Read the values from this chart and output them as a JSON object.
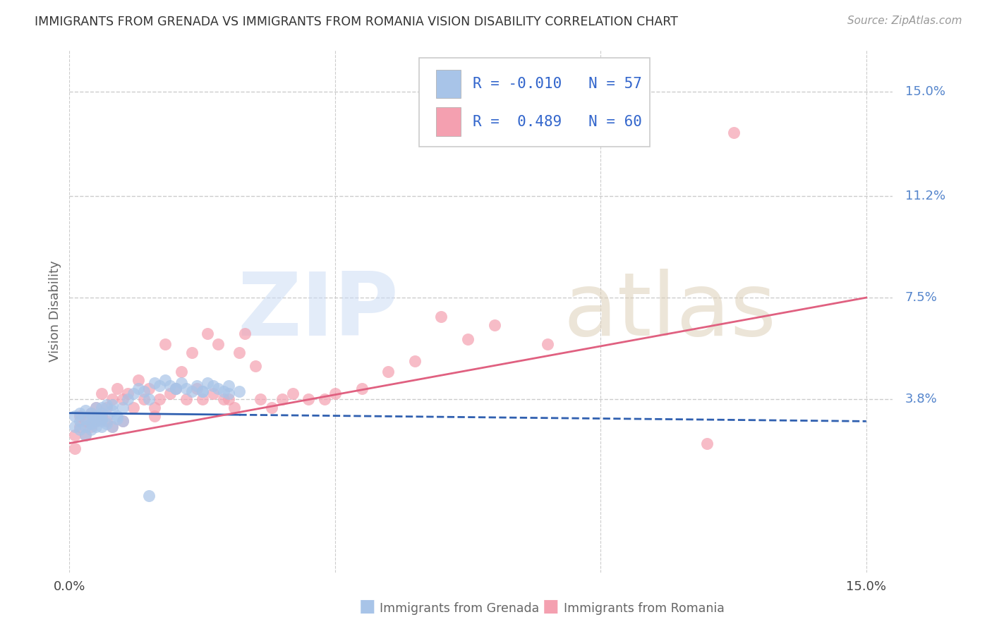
{
  "title": "IMMIGRANTS FROM GRENADA VS IMMIGRANTS FROM ROMANIA VISION DISABILITY CORRELATION CHART",
  "source": "Source: ZipAtlas.com",
  "ylabel": "Vision Disability",
  "xlim": [
    0.0,
    0.155
  ],
  "ylim": [
    -0.025,
    0.165
  ],
  "yticks": [
    0.038,
    0.075,
    0.112,
    0.15
  ],
  "ytick_labels": [
    "3.8%",
    "7.5%",
    "11.2%",
    "15.0%"
  ],
  "xtick_vals": [
    0.0,
    0.05,
    0.1,
    0.15
  ],
  "grenada_color": "#a8c4e8",
  "romania_color": "#f4a0b0",
  "grenada_line_color": "#3060b0",
  "romania_line_color": "#e06080",
  "grenada_R": -0.01,
  "grenada_N": 57,
  "romania_R": 0.489,
  "romania_N": 60,
  "background_color": "#ffffff",
  "grid_color": "#cccccc",
  "axis_label_color": "#5585cc",
  "title_color": "#333333",
  "legend_text_color": "#3366cc",
  "grenada_x": [
    0.001,
    0.001,
    0.002,
    0.002,
    0.002,
    0.003,
    0.003,
    0.003,
    0.003,
    0.004,
    0.004,
    0.004,
    0.004,
    0.005,
    0.005,
    0.005,
    0.005,
    0.006,
    0.006,
    0.006,
    0.006,
    0.006,
    0.007,
    0.007,
    0.007,
    0.008,
    0.008,
    0.008,
    0.009,
    0.009,
    0.01,
    0.01,
    0.011,
    0.012,
    0.013,
    0.014,
    0.015,
    0.016,
    0.017,
    0.018,
    0.019,
    0.02,
    0.021,
    0.022,
    0.023,
    0.024,
    0.025,
    0.026,
    0.027,
    0.028,
    0.029,
    0.03,
    0.032,
    0.015,
    0.02,
    0.025,
    0.03
  ],
  "grenada_y": [
    0.028,
    0.032,
    0.03,
    0.033,
    0.027,
    0.031,
    0.028,
    0.034,
    0.025,
    0.031,
    0.029,
    0.033,
    0.027,
    0.032,
    0.03,
    0.028,
    0.035,
    0.033,
    0.031,
    0.03,
    0.028,
    0.035,
    0.036,
    0.032,
    0.029,
    0.034,
    0.028,
    0.036,
    0.032,
    0.031,
    0.035,
    0.03,
    0.038,
    0.04,
    0.042,
    0.041,
    0.003,
    0.044,
    0.043,
    0.045,
    0.043,
    0.042,
    0.044,
    0.042,
    0.041,
    0.043,
    0.041,
    0.044,
    0.043,
    0.042,
    0.041,
    0.04,
    0.041,
    0.038,
    0.042,
    0.041,
    0.043
  ],
  "romania_x": [
    0.001,
    0.001,
    0.002,
    0.002,
    0.003,
    0.003,
    0.004,
    0.004,
    0.005,
    0.005,
    0.006,
    0.006,
    0.007,
    0.007,
    0.008,
    0.008,
    0.009,
    0.01,
    0.01,
    0.011,
    0.012,
    0.013,
    0.014,
    0.015,
    0.016,
    0.016,
    0.017,
    0.018,
    0.019,
    0.02,
    0.021,
    0.022,
    0.023,
    0.024,
    0.025,
    0.026,
    0.027,
    0.028,
    0.029,
    0.03,
    0.031,
    0.032,
    0.033,
    0.035,
    0.036,
    0.038,
    0.04,
    0.042,
    0.045,
    0.048,
    0.05,
    0.055,
    0.06,
    0.065,
    0.07,
    0.075,
    0.08,
    0.09,
    0.12,
    0.125
  ],
  "romania_y": [
    0.02,
    0.025,
    0.028,
    0.032,
    0.03,
    0.025,
    0.033,
    0.028,
    0.035,
    0.03,
    0.032,
    0.04,
    0.035,
    0.03,
    0.038,
    0.028,
    0.042,
    0.038,
    0.03,
    0.04,
    0.035,
    0.045,
    0.038,
    0.042,
    0.035,
    0.032,
    0.038,
    0.058,
    0.04,
    0.042,
    0.048,
    0.038,
    0.055,
    0.042,
    0.038,
    0.062,
    0.04,
    0.058,
    0.038,
    0.038,
    0.035,
    0.055,
    0.062,
    0.05,
    0.038,
    0.035,
    0.038,
    0.04,
    0.038,
    0.038,
    0.04,
    0.042,
    0.048,
    0.052,
    0.068,
    0.06,
    0.065,
    0.058,
    0.022,
    0.135
  ],
  "grenada_trend_x": [
    0.0,
    0.15
  ],
  "grenada_trend_y_start": 0.033,
  "grenada_trend_y_end": 0.03,
  "romania_trend_x": [
    0.0,
    0.15
  ],
  "romania_trend_y_start": 0.022,
  "romania_trend_y_end": 0.075
}
